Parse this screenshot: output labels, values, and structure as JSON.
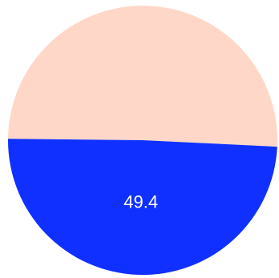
{
  "chart_data": {
    "type": "pie",
    "title": "",
    "slices": [
      {
        "value": 50.6,
        "label": "",
        "color": "#ffd7c9"
      },
      {
        "value": 49.4,
        "label": "49.4",
        "color": "#1030ff"
      }
    ],
    "legend": "none"
  }
}
